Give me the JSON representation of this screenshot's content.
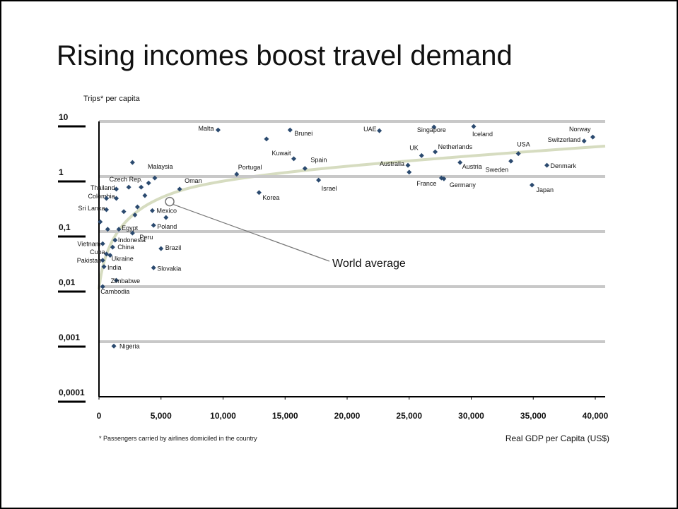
{
  "chart_data": {
    "type": "scatter",
    "title": "Rising incomes boost travel demand",
    "y_label": "Trips* per capita",
    "x_label": "Real GDP per Capita (US$)",
    "footnote": "* Passengers carried by airlines domiciled in the country",
    "log_y": true,
    "grid": true,
    "color": "#2b4a6f",
    "xlim": [
      0,
      40000
    ],
    "xticks": [
      0,
      {
        "value": 5000,
        "label": "5,000"
      },
      {
        "value": 10000,
        "label": "10,000"
      },
      {
        "value": 15000,
        "label": "15,000"
      },
      {
        "value": 20000,
        "label": "20,000"
      },
      {
        "value": 25000,
        "label": "25,000"
      },
      {
        "value": 30000,
        "label": "30,000"
      },
      {
        "value": 35000,
        "label": "35,000"
      },
      {
        "value": 40000,
        "label": "40,000"
      }
    ],
    "ylim": [
      0.0001,
      10
    ],
    "yticks": [
      {
        "value": 0.0001,
        "label": "0,0001"
      },
      {
        "value": 0.001,
        "label": "0,001"
      },
      {
        "value": 0.01,
        "label": "0,01"
      },
      {
        "value": 0.1,
        "label": "0,1"
      },
      1,
      10
    ],
    "point_labels": [
      "Malta",
      "Brunei",
      "Kuwait",
      "Spain",
      "Israel",
      "Portugal",
      "Korea",
      "UAE",
      "Singapore",
      "Iceland",
      "UK",
      "Netherlands",
      "Australia",
      "France",
      "Germany",
      "Austria",
      "Sweden",
      "USA",
      "Denmark",
      "Japan",
      "Switzerland",
      "Norway",
      "Malaysia",
      "Oman",
      "Czech Rep.",
      "Thailand",
      "Colombia",
      "Sri Lanka",
      "Mexico",
      "Poland",
      "Egypt",
      "Peru",
      "Indonesia",
      "Vietnam",
      "China",
      "Cuba",
      "Ukraine",
      "Pakistan",
      "Brazil",
      "India",
      "Slovakia",
      "Zimbabwe",
      "Cambodia",
      "Nigeria",
      null,
      null,
      null,
      null,
      null,
      null,
      null,
      null,
      null,
      null,
      null,
      null,
      null
    ],
    "x": [
      9600,
      15400,
      15700,
      16600,
      17700,
      11100,
      12900,
      22600,
      27000,
      30200,
      26000,
      27100,
      24900,
      27600,
      27800,
      29100,
      33200,
      33800,
      36100,
      34900,
      39100,
      39800,
      4500,
      6500,
      3400,
      1400,
      1400,
      600,
      4300,
      4400,
      1600,
      2700,
      1300,
      300,
      1100,
      600,
      900,
      300,
      5000,
      400,
      4400,
      1400,
      300,
      1200,
      13500,
      2700,
      25000,
      2400,
      3700,
      3100,
      5400,
      2000,
      600,
      700,
      100,
      2900,
      4000
    ],
    "values": [
      7.0,
      7.0,
      2.1,
      1.4,
      0.86,
      1.1,
      0.51,
      6.8,
      7.9,
      8.1,
      2.4,
      2.8,
      1.6,
      0.94,
      0.91,
      1.8,
      1.9,
      2.6,
      1.6,
      0.7,
      4.4,
      5.2,
      0.94,
      0.59,
      0.64,
      0.59,
      0.4,
      0.25,
      0.24,
      0.13,
      0.11,
      0.094,
      0.07,
      0.06,
      0.052,
      0.039,
      0.037,
      0.03,
      0.049,
      0.023,
      0.022,
      0.013,
      0.01,
      0.00083,
      4.8,
      1.8,
      1.2,
      0.64,
      0.45,
      0.28,
      0.18,
      0.23,
      0.4,
      0.11,
      0.15,
      0.2,
      0.76
    ],
    "world_average": {
      "label": "World average",
      "x": 5700,
      "y": 0.35
    }
  }
}
